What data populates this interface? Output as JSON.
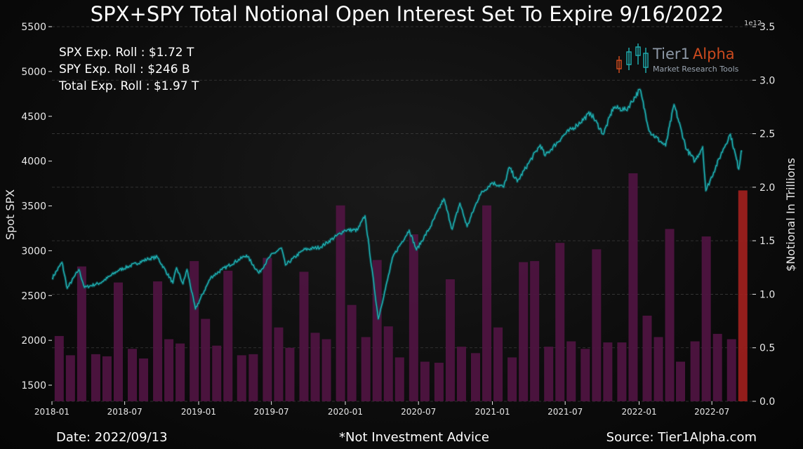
{
  "chart_data": {
    "type": "bar+line",
    "title": "SPX+SPY Total Notional Open Interest Set To Expire 9/16/2022",
    "ylabel_left": "Spot SPX",
    "ylabel_right": "$Notional In Trillions",
    "right_axis_multiplier": "1e12",
    "ylim_left": [
      1320,
      5500
    ],
    "ylim_right": [
      0,
      3.5
    ],
    "yticks_left": [
      "1500",
      "2000",
      "2500",
      "3000",
      "3500",
      "4000",
      "4500",
      "5000",
      "5500"
    ],
    "yticks_right": [
      "0.0",
      "0.5",
      "1.0",
      "1.5",
      "2.0",
      "2.5",
      "3.0",
      "3.5"
    ],
    "xticks": [
      "2018-01",
      "2018-07",
      "2019-01",
      "2019-07",
      "2020-01",
      "2020-07",
      "2021-01",
      "2021-07",
      "2022-01",
      "2022-07"
    ],
    "grid": "horizontal dashed",
    "bars": {
      "name": "Notional Open Interest",
      "dates": [
        "2018-01-19",
        "2018-02-16",
        "2018-03-16",
        "2018-04-20",
        "2018-05-18",
        "2018-06-15",
        "2018-07-20",
        "2018-08-17",
        "2018-09-21",
        "2018-10-19",
        "2018-11-16",
        "2018-12-21",
        "2019-01-18",
        "2019-02-15",
        "2019-03-15",
        "2019-04-18",
        "2019-05-17",
        "2019-06-21",
        "2019-07-19",
        "2019-08-16",
        "2019-09-20",
        "2019-10-18",
        "2019-11-15",
        "2019-12-20",
        "2020-01-17",
        "2020-02-21",
        "2020-03-20",
        "2020-04-17",
        "2020-05-15",
        "2020-06-19",
        "2020-07-17",
        "2020-08-21",
        "2020-09-18",
        "2020-10-16",
        "2020-11-20",
        "2020-12-18",
        "2021-01-15",
        "2021-02-19",
        "2021-03-19",
        "2021-04-16",
        "2021-05-21",
        "2021-06-18",
        "2021-07-16",
        "2021-08-20",
        "2021-09-17",
        "2021-10-15",
        "2021-11-19",
        "2021-12-17",
        "2022-01-21",
        "2022-02-18",
        "2022-03-18",
        "2022-04-14",
        "2022-05-20",
        "2022-06-17",
        "2022-07-15",
        "2022-08-19",
        "2022-09-16"
      ],
      "values": [
        0.61,
        0.43,
        1.26,
        0.44,
        0.42,
        1.11,
        0.49,
        0.4,
        1.12,
        0.58,
        0.54,
        1.31,
        0.77,
        0.52,
        1.22,
        0.43,
        0.44,
        1.34,
        0.69,
        0.5,
        1.21,
        0.64,
        0.58,
        1.83,
        0.9,
        0.6,
        1.32,
        0.7,
        0.41,
        1.56,
        0.37,
        0.36,
        1.14,
        0.51,
        0.45,
        1.83,
        0.69,
        0.41,
        1.3,
        1.31,
        0.51,
        1.48,
        0.56,
        0.49,
        1.42,
        0.55,
        0.55,
        2.13,
        0.8,
        0.6,
        1.61,
        0.37,
        0.56,
        1.54,
        0.63,
        0.58,
        1.97
      ],
      "highlight_last": true
    },
    "spot_line": {
      "name": "Spot SPX",
      "x": [
        "2018-01-01",
        "2018-01-26",
        "2018-02-08",
        "2018-03-09",
        "2018-03-23",
        "2018-05-01",
        "2018-06-15",
        "2018-08-29",
        "2018-09-20",
        "2018-10-29",
        "2018-11-07",
        "2018-11-23",
        "2018-12-03",
        "2018-12-24",
        "2019-01-31",
        "2019-02-28",
        "2019-04-30",
        "2019-05-31",
        "2019-06-28",
        "2019-07-26",
        "2019-08-05",
        "2019-09-19",
        "2019-10-31",
        "2019-12-31",
        "2020-01-31",
        "2020-02-19",
        "2020-03-23",
        "2020-04-29",
        "2020-06-08",
        "2020-06-26",
        "2020-07-31",
        "2020-09-02",
        "2020-09-23",
        "2020-10-12",
        "2020-10-30",
        "2020-11-30",
        "2020-12-31",
        "2021-01-29",
        "2021-02-12",
        "2021-03-04",
        "2021-03-31",
        "2021-04-30",
        "2021-05-12",
        "2021-06-30",
        "2021-07-30",
        "2021-09-02",
        "2021-10-04",
        "2021-10-29",
        "2021-11-30",
        "2022-01-03",
        "2022-01-27",
        "2022-02-23",
        "2022-03-08",
        "2022-03-29",
        "2022-04-29",
        "2022-05-20",
        "2022-06-08",
        "2022-06-16",
        "2022-07-29",
        "2022-08-16",
        "2022-09-06",
        "2022-09-12",
        "2022-09-13"
      ],
      "y": [
        2690,
        2870,
        2580,
        2790,
        2590,
        2640,
        2780,
        2910,
        2930,
        2640,
        2810,
        2630,
        2790,
        2350,
        2700,
        2790,
        2950,
        2750,
        2940,
        3030,
        2840,
        3010,
        3040,
        3230,
        3230,
        3390,
        2240,
        2940,
        3230,
        3010,
        3270,
        3580,
        3240,
        3530,
        3270,
        3620,
        3760,
        3710,
        3930,
        3770,
        3970,
        4180,
        4060,
        4300,
        4400,
        4540,
        4300,
        4600,
        4570,
        4800,
        4330,
        4220,
        4170,
        4630,
        4130,
        4000,
        4160,
        3670,
        4130,
        4300,
        3910,
        4110,
        4120
      ]
    },
    "annotations": [
      "SPX Exp. Roll : $1.72 T",
      "SPY Exp. Roll : $246 B",
      "Total Exp. Roll : $1.97 T"
    ]
  },
  "logo": {
    "name_part1": "Tier1",
    "name_part2": "Alpha",
    "tagline": "Market  Research Tools"
  },
  "footer": {
    "date": "Date: 2022/09/13",
    "disclaimer": "*Not Investment Advice",
    "source": "Source: Tier1Alpha.com"
  },
  "colors": {
    "bar": "#4e1440",
    "bar_highlight": "#a3201e",
    "line": "#1ea8aa",
    "line_glow": "#0f5e60",
    "grid": "#3a3a3a",
    "logo_part1": "#8d98a6",
    "logo_part2": "#cc4a1e"
  }
}
